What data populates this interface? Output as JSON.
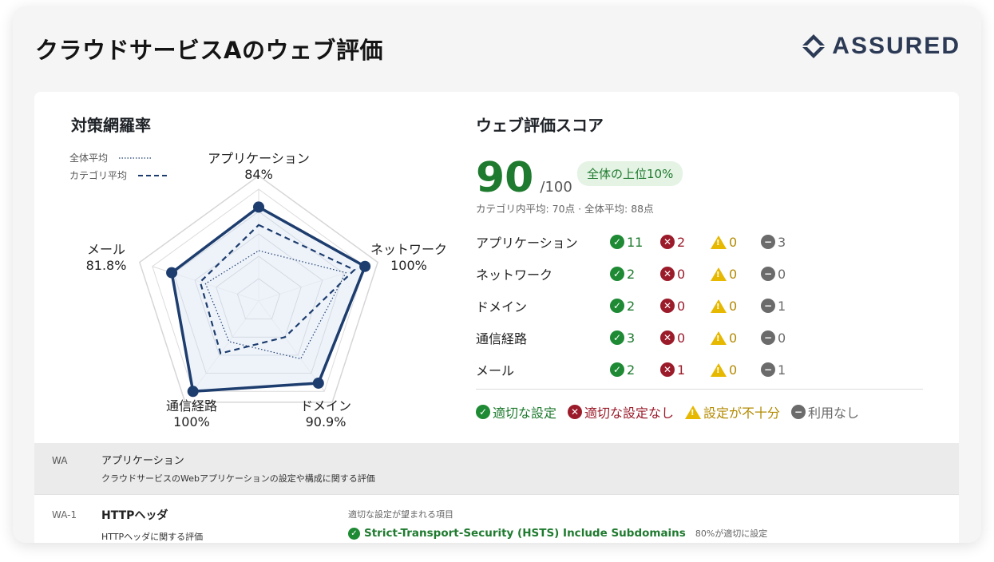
{
  "header": {
    "title": "クラウドサービスAのウェブ評価",
    "logo_text": "ASSURED"
  },
  "coverage": {
    "title": "対策網羅率",
    "legend": [
      {
        "label": "全体平均",
        "style": "dotted"
      },
      {
        "label": "カテゴリ平均",
        "style": "dashed"
      }
    ],
    "axes": [
      {
        "name": "アプリケーション",
        "pct": "84%"
      },
      {
        "name": "ネットワーク",
        "pct": "100%"
      },
      {
        "name": "ドメイン",
        "pct": "90.9%"
      },
      {
        "name": "通信経路",
        "pct": "100%"
      },
      {
        "name": "メール",
        "pct": "81.8%"
      }
    ]
  },
  "chart_data": {
    "type": "radar",
    "categories": [
      "アプリケーション",
      "ネットワーク",
      "ドメイン",
      "通信経路",
      "メール"
    ],
    "series": [
      {
        "values": [
          84,
          100,
          90.9,
          100,
          81.8
        ],
        "style": "solid"
      },
      {
        "name": "カテゴリ平均",
        "values": [
          68,
          90,
          40,
          58,
          55
        ],
        "style": "dashed"
      },
      {
        "name": "全体平均",
        "values": [
          45,
          82,
          64,
          45,
          50
        ],
        "style": "dotted"
      }
    ],
    "range": [
      0,
      100
    ],
    "colors": {
      "main": "#1d3d6e",
      "fill": "#e8eff8"
    }
  },
  "score": {
    "title": "ウェブ評価スコア",
    "value": "90",
    "max": "/100",
    "badge": "全体の上位10%",
    "sub": "カテゴリ内平均: 70点 · 全体平均: 88点",
    "rows": [
      {
        "name": "アプリケーション",
        "ok": "11",
        "ng": "2",
        "warn": "0",
        "na": "3"
      },
      {
        "name": "ネットワーク",
        "ok": "2",
        "ng": "0",
        "warn": "0",
        "na": "0"
      },
      {
        "name": "ドメイン",
        "ok": "2",
        "ng": "0",
        "warn": "0",
        "na": "1"
      },
      {
        "name": "通信経路",
        "ok": "3",
        "ng": "0",
        "warn": "0",
        "na": "0"
      },
      {
        "name": "メール",
        "ok": "2",
        "ng": "1",
        "warn": "0",
        "na": "1"
      }
    ],
    "key": {
      "ok": "適切な設定",
      "ng": "適切な設定なし",
      "warn": "設定が不十分",
      "na": "利用なし"
    }
  },
  "details": {
    "wa": {
      "code": "WA",
      "name": "アプリケーション",
      "desc": "クラウドサービスのWebアプリケーションの設定や構成に関する評価"
    },
    "wa1": {
      "code": "WA-1",
      "name": "HTTPヘッダ",
      "desc": "HTTPヘッダに関する評価",
      "expect_label": "適切な設定が望まれる項目",
      "item": "Strict-Transport-Security (HSTS) Include Subdomains",
      "item_pct": "80%が適切に設定"
    }
  },
  "colors": {
    "ok": "#1e8a34",
    "ng": "#9b1b2a",
    "warn": "#e6b800",
    "na": "#6b6b6b",
    "brand": "#2c3a55"
  }
}
